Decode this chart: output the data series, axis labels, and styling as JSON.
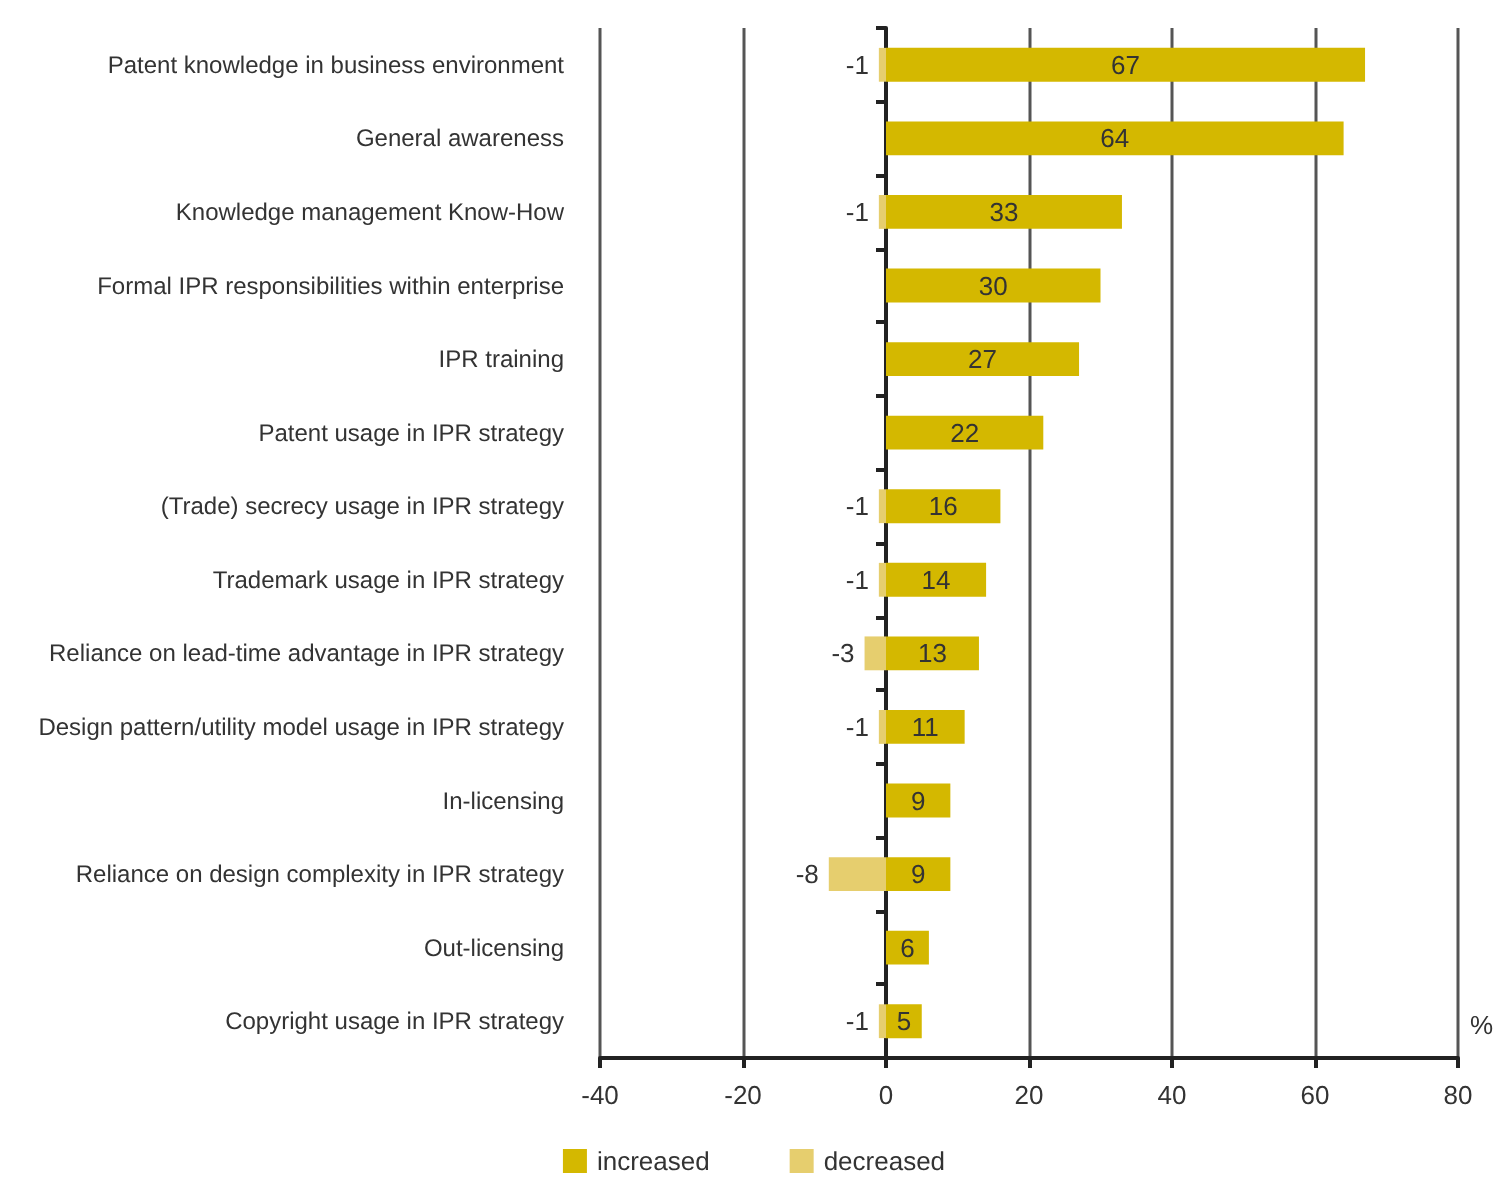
{
  "chart_data": {
    "type": "bar",
    "orientation": "horizontal",
    "stacked": true,
    "xlabel": "%",
    "categories": [
      "Patent knowledge in business environment",
      "General awareness",
      "Knowledge management Know-How",
      "Formal IPR responsibilities within enterprise",
      "IPR training",
      "Patent usage in IPR strategy",
      "(Trade) secrecy usage in IPR strategy",
      "Trademark usage in IPR strategy",
      "Reliance on lead-time advantage in IPR strategy",
      "Design pattern/utility model usage in IPR strategy",
      "In-licensing",
      "Reliance on design complexity in IPR strategy",
      "Out-licensing",
      "Copyright usage in IPR strategy"
    ],
    "series": [
      {
        "name": "increased",
        "color": "#d4b800",
        "values": [
          67,
          64,
          33,
          30,
          27,
          22,
          16,
          14,
          13,
          11,
          9,
          9,
          6,
          5
        ]
      },
      {
        "name": "decreased",
        "color": "#e6ce6e",
        "values": [
          -1,
          null,
          -1,
          null,
          null,
          null,
          -1,
          -1,
          -3,
          -1,
          null,
          -8,
          null,
          -1
        ]
      }
    ],
    "xlim": [
      -40,
      80
    ],
    "xticks": [
      -40,
      -20,
      0,
      20,
      40,
      60,
      80
    ],
    "grid": "x",
    "legend": "bottom",
    "data_labels": true
  }
}
